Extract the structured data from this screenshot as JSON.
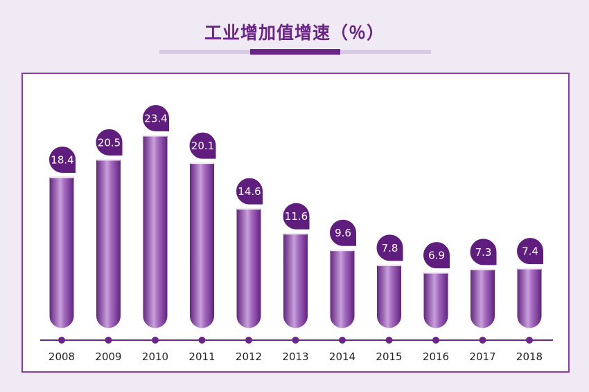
{
  "title": "工业增加值增速（％）",
  "colors": {
    "bar_dark": "#5f1d7e",
    "bar_light": "#c79bd8",
    "accent": "#6b2487",
    "panel_border": "#8a3aa6",
    "background": "#f0eaf5"
  },
  "chart_data": {
    "type": "bar",
    "title": "工业增加值增速（％）",
    "categories": [
      "2008",
      "2009",
      "2010",
      "2011",
      "2012",
      "2013",
      "2014",
      "2015",
      "2016",
      "2017",
      "2018"
    ],
    "values": [
      18.4,
      20.5,
      23.4,
      20.1,
      14.6,
      11.6,
      9.6,
      7.8,
      6.9,
      7.3,
      7.4
    ],
    "value_labels": [
      "18.4",
      "20.5",
      "23.4",
      "20.1",
      "14.6",
      "11.6",
      "9.6",
      "7.8",
      "6.9",
      "7.3",
      "7.4"
    ],
    "xlabel": "",
    "ylabel": "",
    "ylim": [
      0,
      25
    ],
    "grid": false,
    "legend": "none"
  }
}
